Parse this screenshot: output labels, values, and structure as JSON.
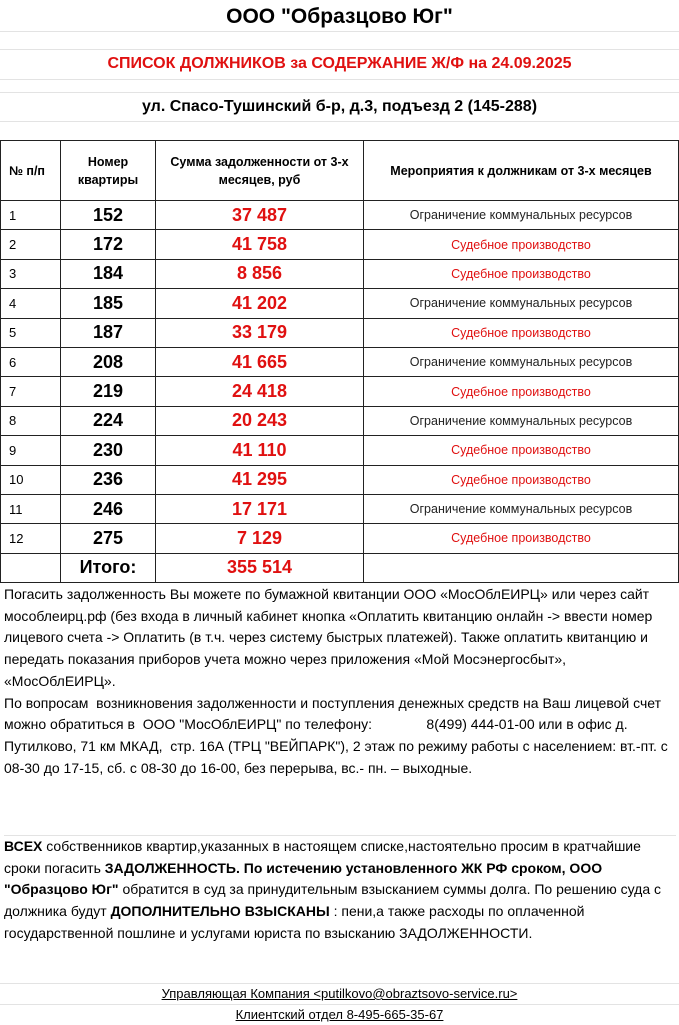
{
  "title": "ООО \"Образцово Юг\"",
  "subtitle": "СПИСОК ДОЛЖНИКОВ за СОДЕРЖАНИЕ Ж/Ф  на 24.09.2025",
  "address": "ул. Спасо-Тушинский б-р, д.3, подъезд 2 (145-288)",
  "colors": {
    "accent_red": "#e01010"
  },
  "table": {
    "headers": [
      "№ п/п",
      "Номер квартиры",
      "Сумма  задолженности от  3-х месяцев, руб",
      "Мероприятия к должникам от 3-х месяцев"
    ],
    "rows": [
      {
        "n": "1",
        "apt": "152",
        "sum": "37 487",
        "action": "Ограничение  коммунальных  ресурсов",
        "type": "restrict"
      },
      {
        "n": "2",
        "apt": "172",
        "sum": "41 758",
        "action": "Судебное производство",
        "type": "court"
      },
      {
        "n": "3",
        "apt": "184",
        "sum": "8 856",
        "action": "Судебное производство",
        "type": "court"
      },
      {
        "n": "4",
        "apt": "185",
        "sum": "41 202",
        "action": "Ограничение  коммунальных  ресурсов",
        "type": "restrict"
      },
      {
        "n": "5",
        "apt": "187",
        "sum": "33 179",
        "action": "Судебное производство",
        "type": "court"
      },
      {
        "n": "6",
        "apt": "208",
        "sum": "41 665",
        "action": "Ограничение  коммунальных  ресурсов",
        "type": "restrict"
      },
      {
        "n": "7",
        "apt": "219",
        "sum": "24 418",
        "action": "Судебное производство",
        "type": "court"
      },
      {
        "n": "8",
        "apt": "224",
        "sum": "20 243",
        "action": "Ограничение  коммунальных  ресурсов",
        "type": "restrict"
      },
      {
        "n": "9",
        "apt": "230",
        "sum": "41 110",
        "action": "Судебное производство",
        "type": "court"
      },
      {
        "n": "10",
        "apt": "236",
        "sum": "41 295",
        "action": "Судебное производство",
        "type": "court"
      },
      {
        "n": "11",
        "apt": "246",
        "sum": "17 171",
        "action": "Ограничение  коммунальных  ресурсов",
        "type": "restrict"
      },
      {
        "n": "12",
        "apt": "275",
        "sum": "7 129",
        "action": "Судебное производство",
        "type": "court"
      }
    ],
    "total_label": "Итого:",
    "total_value": "355 514"
  },
  "notes": {
    "p1": " Погасить задолженность Вы можете по бумажной квитанции ООО «МосОблЕИРЦ» или через сайт мособлеирц.рф (без входа в личный кабинет кнопка «Оплатить квитанцию онлайн -> ввести номер лицевого счета -> Оплатить (в т.ч. через систему быстрых платежей). Также оплатить квитанцию и передать показания приборов учета можно через приложения «Мой Мосэнергосбыт», «МосОблЕИРЦ».",
    "p2": "По вопросам  возникновения задолженности и поступления денежных средств на Ваш лицевой счет можно обратиться в  ООО \"МосОблЕИРЦ\" по телефону:              8(499) 444-01-00 или в офис д. Путилково, 71 км МКАД,  стр. 16А (ТРЦ \"ВЕЙПАРК\"), 2 этаж по режиму работы с населением: вт.-пт. с 08-30 до 17-15, сб. с 08-30 до 16-00, без перерыва, вс.- пн. – выходные."
  },
  "warning": {
    "b1": "ВСЕХ",
    "t1": " собственников квартир,указанных в настоящем списке,настоятельно просим в кратчайшие сроки погасить ",
    "b2": "ЗАДОЛЖЕННОСТЬ.  По истечению установленного ЖК РФ сроком, ООО \"Образцово Юг\"",
    "t2": " обратится в суд за принудительным взысканием суммы долга. По решению суда с должника будут ",
    "b3": "ДОПОЛНИТЕЛЬНО ВЗЫСКАНЫ",
    "t3": " : пени,а также расходы по оплаченной государственной пошлине и услугами юриста по взысканию ЗАДОЛЖЕННОСТИ."
  },
  "footer": {
    "company": "Управляющая Компания <putilkovo@obraztsovo-service.ru>",
    "client_dept": "Клиентский  отдел  8-495-665-35-67"
  }
}
